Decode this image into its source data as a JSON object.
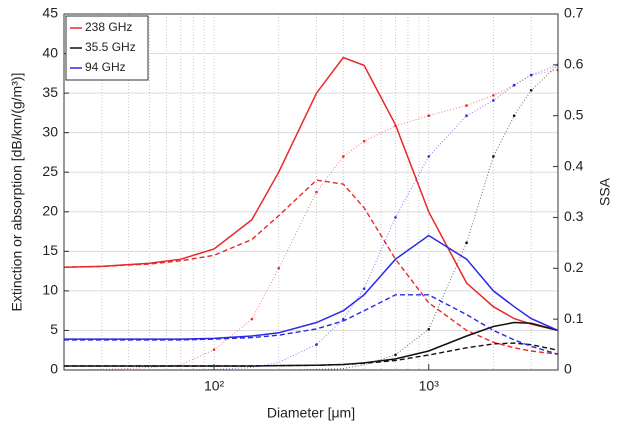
{
  "chart_data": {
    "type": "line",
    "xlabel": "Diameter [μm]",
    "ylabel": "Extinction or absorption [dB/km/(g/m³)]",
    "y2label": "SSA",
    "xscale": "log",
    "grid": true,
    "legend": "upper left",
    "xlim": [
      20,
      4000
    ],
    "xticks": [
      {
        "value": 100,
        "label": "10²"
      },
      {
        "value": 1000,
        "label": "10³"
      }
    ],
    "xminorticks": [
      20,
      30,
      40,
      50,
      60,
      70,
      80,
      90,
      200,
      300,
      400,
      500,
      600,
      700,
      800,
      900,
      2000,
      3000,
      4000
    ],
    "ylim": [
      0,
      45
    ],
    "yticks": [
      0,
      5,
      10,
      15,
      20,
      25,
      30,
      35,
      40,
      45
    ],
    "y2lim": [
      0,
      0.7
    ],
    "y2ticks": [
      0,
      0.1,
      0.2,
      0.3,
      0.4,
      0.5,
      0.6,
      0.7
    ],
    "x": [
      20,
      30,
      50,
      70,
      100,
      150,
      200,
      300,
      400,
      500,
      700,
      1000,
      1500,
      2000,
      2500,
      3000,
      4000
    ],
    "series": [
      {
        "name": "238 GHz",
        "color": "#e8282b",
        "values": [
          13,
          13.1,
          13.5,
          14,
          15.3,
          19,
          25,
          35,
          39.5,
          38.5,
          31,
          20,
          11,
          8,
          6.5,
          5.8,
          5
        ],
        "absorption": [
          13,
          13.1,
          13.4,
          13.8,
          14.5,
          16.5,
          19.5,
          24,
          23.5,
          20.5,
          14,
          8.5,
          5,
          3.5,
          2.8,
          2.4,
          2
        ],
        "ssa": [
          0,
          0.001,
          0.005,
          0.01,
          0.04,
          0.1,
          0.2,
          0.35,
          0.42,
          0.45,
          0.48,
          0.5,
          0.52,
          0.54,
          0.56,
          0.58,
          0.59
        ]
      },
      {
        "name": "35.5 GHz",
        "color": "#111111",
        "values": [
          0.5,
          0.5,
          0.5,
          0.5,
          0.5,
          0.5,
          0.55,
          0.6,
          0.7,
          0.9,
          1.4,
          2.4,
          4.3,
          5.5,
          6,
          5.9,
          5
        ],
        "absorption": [
          0.5,
          0.5,
          0.5,
          0.5,
          0.5,
          0.5,
          0.55,
          0.6,
          0.7,
          0.85,
          1.2,
          1.9,
          2.8,
          3.3,
          3.4,
          3.2,
          2.5
        ],
        "ssa": [
          0,
          0,
          0,
          0,
          0,
          0,
          0,
          0.001,
          0.003,
          0.01,
          0.03,
          0.08,
          0.25,
          0.42,
          0.5,
          0.55,
          0.6
        ]
      },
      {
        "name": "94 GHz",
        "color": "#2a2ae6",
        "values": [
          3.9,
          3.9,
          3.9,
          3.9,
          4,
          4.3,
          4.7,
          6,
          7.5,
          9.5,
          14,
          17,
          14,
          10,
          8,
          6.5,
          5
        ],
        "absorption": [
          3.8,
          3.8,
          3.8,
          3.8,
          3.9,
          4.1,
          4.4,
          5.2,
          6.2,
          7.5,
          9.5,
          9.5,
          7,
          5,
          3.8,
          3,
          2
        ],
        "ssa": [
          0,
          0,
          0,
          0,
          0.001,
          0.005,
          0.015,
          0.05,
          0.1,
          0.16,
          0.3,
          0.42,
          0.5,
          0.53,
          0.56,
          0.58,
          0.6
        ]
      }
    ]
  }
}
